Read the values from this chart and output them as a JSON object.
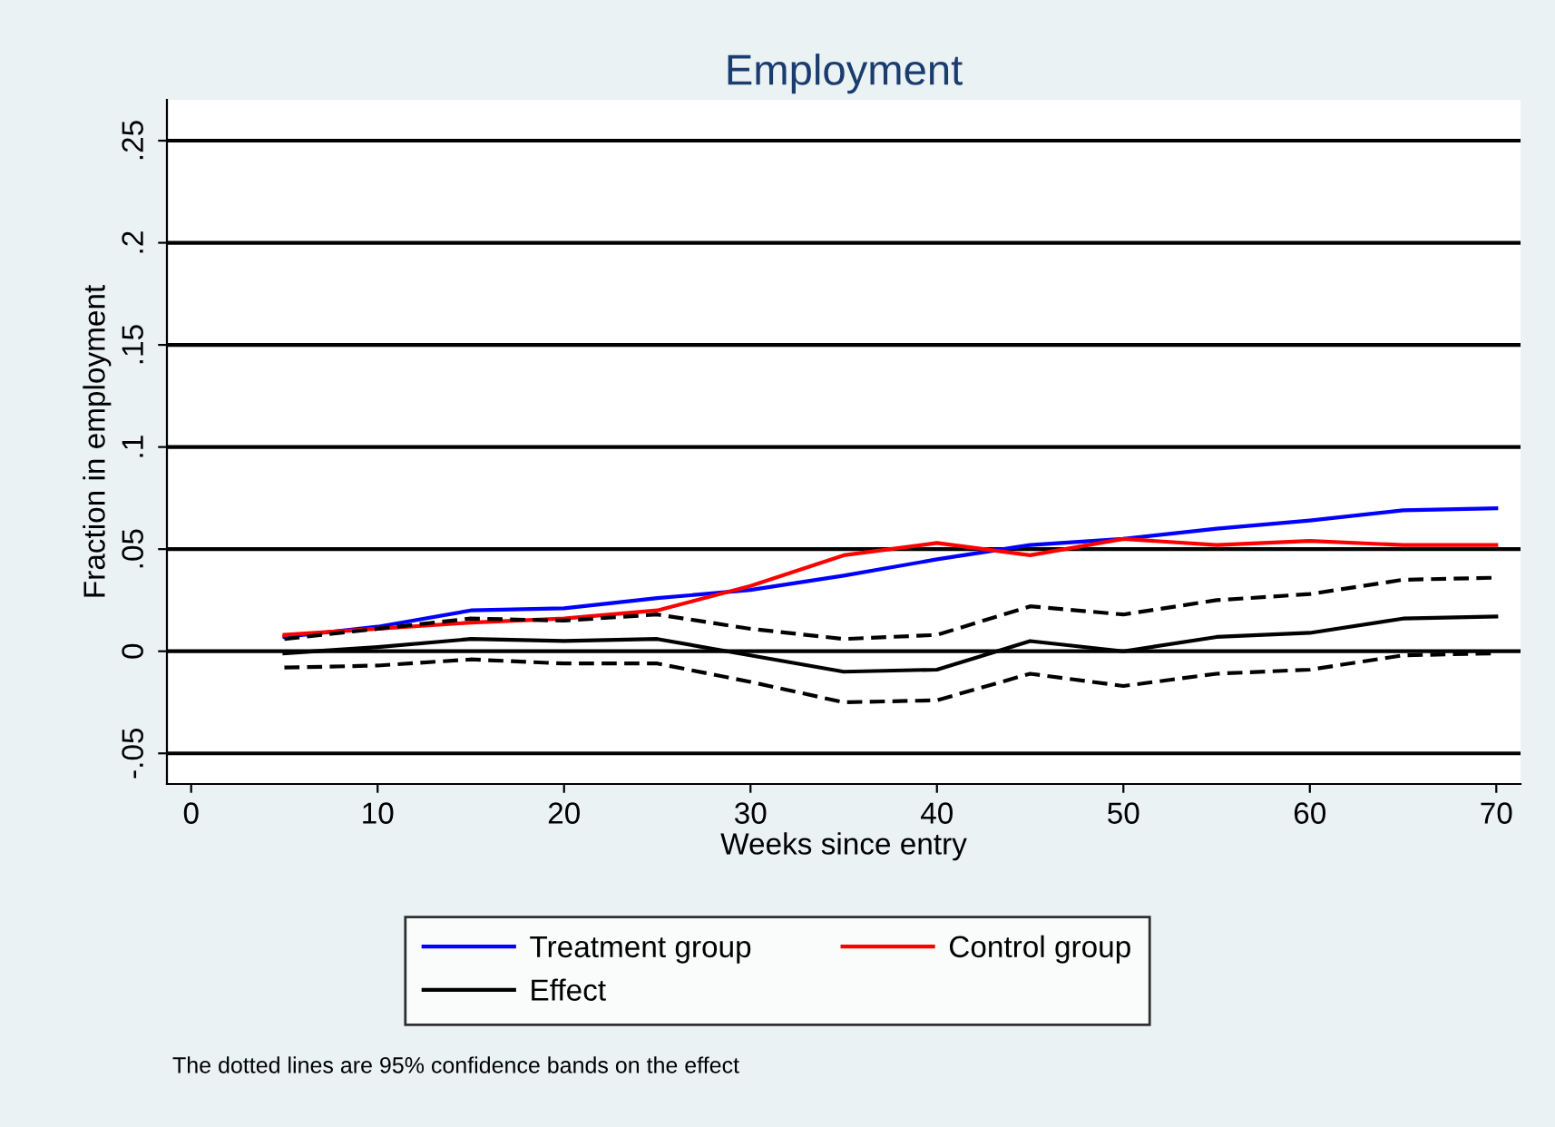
{
  "chart_data": {
    "type": "line",
    "title": "Employment",
    "xlabel": "Weeks since entry",
    "ylabel": "Fraction in employment",
    "x": [
      5,
      10,
      15,
      20,
      25,
      30,
      35,
      40,
      45,
      50,
      55,
      60,
      65,
      70
    ],
    "series": [
      {
        "name": "Treatment group",
        "color": "#0000ff",
        "values": [
          0.007,
          0.012,
          0.02,
          0.021,
          0.026,
          0.03,
          0.037,
          0.045,
          0.052,
          0.055,
          0.06,
          0.064,
          0.069,
          0.07
        ]
      },
      {
        "name": "Control group",
        "color": "#ff0000",
        "values": [
          0.008,
          0.011,
          0.014,
          0.016,
          0.02,
          0.032,
          0.047,
          0.053,
          0.047,
          0.055,
          0.052,
          0.054,
          0.052,
          0.052
        ]
      },
      {
        "name": "Effect",
        "color": "#000000",
        "values": [
          -0.001,
          0.002,
          0.006,
          0.005,
          0.006,
          -0.002,
          -0.01,
          -0.009,
          0.005,
          0.0,
          0.007,
          0.009,
          0.016,
          0.017
        ]
      },
      {
        "color": "#000000",
        "line_style": "dashed",
        "values": [
          0.006,
          0.011,
          0.016,
          0.015,
          0.018,
          0.011,
          0.006,
          0.008,
          0.022,
          0.018,
          0.025,
          0.028,
          0.035,
          0.036
        ]
      },
      {
        "color": "#000000",
        "line_style": "dashed",
        "values": [
          -0.008,
          -0.007,
          -0.004,
          -0.006,
          -0.006,
          -0.015,
          -0.025,
          -0.024,
          -0.011,
          -0.017,
          -0.011,
          -0.009,
          -0.002,
          -0.001
        ]
      }
    ],
    "xlim": [
      -1.3,
      71.3
    ],
    "xticks": [
      0,
      10,
      20,
      30,
      40,
      50,
      60,
      70
    ],
    "ylim": [
      -0.065,
      0.27
    ],
    "yticks": [
      {
        "value": -0.05,
        "label": "-.05"
      },
      {
        "value": 0,
        "label": "0"
      },
      {
        "value": 0.05,
        "label": ".05"
      },
      {
        "value": 0.1,
        "label": ".1"
      },
      {
        "value": 0.15,
        "label": ".15"
      },
      {
        "value": 0.2,
        "label": ".2"
      },
      {
        "value": 0.25,
        "label": ".25"
      }
    ],
    "grid": "y",
    "legend": "bottom",
    "line_style": "solid",
    "annotations": [
      "The dotted lines are 95% confidence bands on the effect"
    ]
  }
}
